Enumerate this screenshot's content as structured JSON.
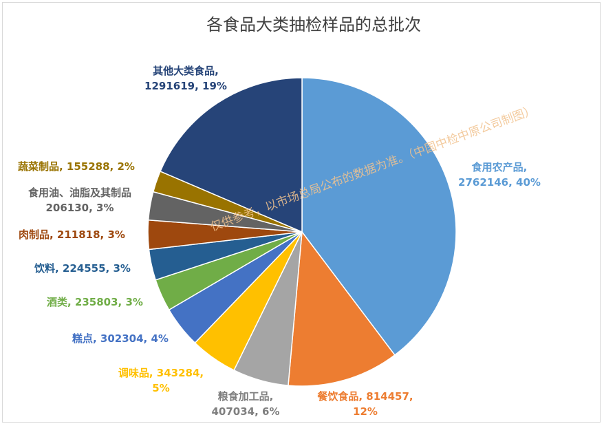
{
  "chart_data": {
    "type": "pie",
    "title": "各食品大类抽检样品的总批次",
    "watermark": "仅供参考，以市场总局公布的数据为准。（中国中检中原公司制图）",
    "start_angle_deg": 0,
    "direction": "clockwise",
    "slices": [
      {
        "name": "食用农产品",
        "value": 2762146,
        "percent": "40%",
        "color": "#5b9bd5",
        "label_lines": [
          "食用农产品,",
          "2762146, 40%"
        ]
      },
      {
        "name": "餐饮食品",
        "value": 814457,
        "percent": "12%",
        "color": "#ed7d31",
        "label_lines": [
          "餐饮食品, 814457,",
          "12%"
        ]
      },
      {
        "name": "粮食加工品",
        "value": 407034,
        "percent": "6%",
        "color": "#a5a5a5",
        "label_lines": [
          "粮食加工品,",
          "407034, 6%"
        ]
      },
      {
        "name": "调味品",
        "value": 343284,
        "percent": "5%",
        "color": "#ffc000",
        "label_lines": [
          "调味品, 343284,",
          "5%"
        ]
      },
      {
        "name": "糕点",
        "value": 302304,
        "percent": "4%",
        "color": "#4472c4",
        "label_lines": [
          "糕点, 302304, 4%"
        ]
      },
      {
        "name": "酒类",
        "value": 235803,
        "percent": "3%",
        "color": "#70ad47",
        "label_lines": [
          "酒类, 235803, 3%"
        ]
      },
      {
        "name": "饮料",
        "value": 224555,
        "percent": "3%",
        "color": "#255e91",
        "label_lines": [
          "饮料, 224555, 3%"
        ]
      },
      {
        "name": "肉制品",
        "value": 211818,
        "percent": "3%",
        "color": "#9e480e",
        "label_lines": [
          "肉制品, 211818, 3%"
        ]
      },
      {
        "name": "食用油、油脂及其制品",
        "value": 206130,
        "percent": "3%",
        "color": "#636363",
        "label_lines": [
          "食用油、油脂及其制品",
          "206130, 3%"
        ]
      },
      {
        "name": "蔬菜制品",
        "value": 155288,
        "percent": "2%",
        "color": "#997300",
        "label_lines": [
          "蔬菜制品, 155288, 2%"
        ]
      },
      {
        "name": "其他大类食品",
        "value": 1291619,
        "percent": "19%",
        "color": "#264478",
        "label_lines": [
          "其他大类食品,",
          "1291619, 19%"
        ]
      }
    ]
  }
}
